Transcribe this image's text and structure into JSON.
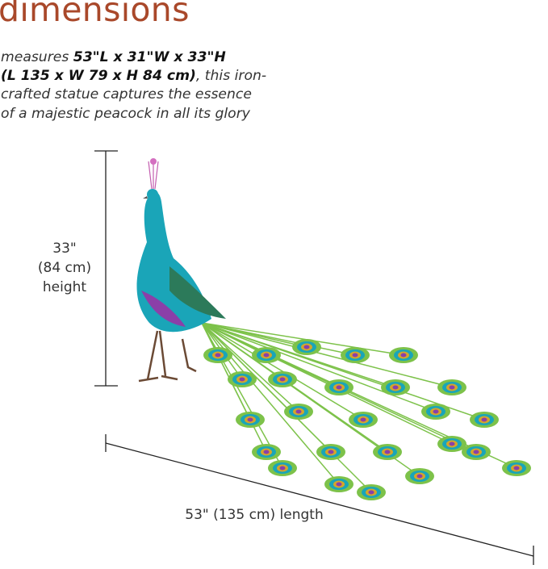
{
  "heading": "dimensions",
  "description": {
    "prefix": "measures ",
    "bold_imperial": "53\"L x 31\"W x 33\"H",
    "bold_metric": "(L 135 x W 79 x H 84 cm)",
    "suffix": ", this iron-crafted statue captures the essence of a majestic peacock in all its glory"
  },
  "height_label": {
    "line1": "33\"",
    "line2": "(84 cm)",
    "line3": "height"
  },
  "length_label": "53\" (135 cm) length",
  "colors": {
    "heading": "#a9482a",
    "peacock_body": "#1aa5b8",
    "tail_green": "#7dc24a",
    "accent_purple": "#8b3fa8"
  }
}
